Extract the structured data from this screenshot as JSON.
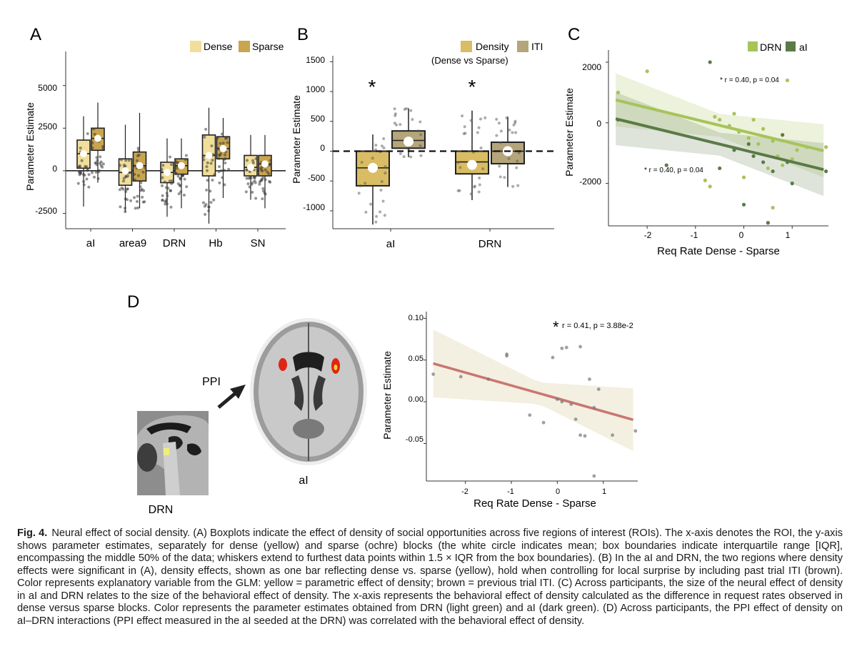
{
  "panels": {
    "A": {
      "label": "A",
      "ylabel": "Parameter Estimate",
      "legend": [
        "Dense",
        "Sparse"
      ],
      "colors": {
        "dense": "#f1de9a",
        "sparse": "#c9a54e"
      },
      "yticks": [
        "-2500",
        "0",
        "2500",
        "5000"
      ],
      "chart_data": {
        "type": "box",
        "categories": [
          "aI",
          "area9",
          "DRN",
          "Hb",
          "SN"
        ],
        "ylim": [
          -3400,
          7000
        ],
        "series": [
          {
            "name": "Dense",
            "q1": [
              150,
              -850,
              -700,
              -300,
              -300
            ],
            "median": [
              1000,
              -100,
              -100,
              900,
              200
            ],
            "q3": [
              1800,
              700,
              500,
              2100,
              900
            ],
            "mean": [
              1000,
              0,
              -100,
              900,
              200
            ],
            "whisker_low": [
              -2100,
              -2400,
              -2700,
              -3100,
              -1700
            ],
            "whisker_high": [
              3200,
              2700,
              1900,
              3700,
              2100
            ]
          },
          {
            "name": "Sparse",
            "q1": [
              1200,
              -600,
              -200,
              700,
              -300
            ],
            "median": [
              1900,
              300,
              300,
              1300,
              400
            ],
            "q3": [
              2500,
              1100,
              700,
              2000,
              900
            ],
            "mean": [
              1900,
              300,
              300,
              1300,
              400
            ],
            "whisker_low": [
              -700,
              -2200,
              -2200,
              -1600,
              -2200
            ],
            "whisker_high": [
              4000,
              3400,
              1900,
              3100,
              2100
            ]
          }
        ]
      }
    },
    "B": {
      "label": "B",
      "ylabel": "Parameter Estimate",
      "legend": [
        "Density",
        "ITI"
      ],
      "legend_sub": "(Dense vs Sparse)",
      "colors": {
        "density": "#d9bc63",
        "iti": "#b5a57a"
      },
      "yticks": [
        "-1000",
        "-500",
        "0",
        "500",
        "1000",
        "1500"
      ],
      "stars": [
        "*",
        "*"
      ],
      "chart_data": {
        "type": "box",
        "categories": [
          "aI",
          "DRN"
        ],
        "ylim": [
          -1300,
          1600
        ],
        "series": [
          {
            "name": "Density",
            "q1": [
              -580,
              -380
            ],
            "median": [
              -280,
              -180
            ],
            "q3": [
              0,
              0
            ],
            "mean": [
              -280,
              -230
            ],
            "whisker_low": [
              -1230,
              -820
            ],
            "whisker_high": [
              280,
              680
            ]
          },
          {
            "name": "ITI",
            "q1": [
              50,
              -210
            ],
            "median": [
              180,
              0
            ],
            "q3": [
              340,
              150
            ],
            "mean": [
              160,
              0
            ],
            "whisker_low": [
              -100,
              -600
            ],
            "whisker_high": [
              720,
              580
            ]
          }
        ]
      }
    },
    "C": {
      "label": "C",
      "ylabel": "Parameter Estimate",
      "xlabel": "Req Rate Dense - Sparse",
      "legend": [
        "DRN",
        "aI"
      ],
      "colors": {
        "drn": "#a7c35a",
        "ai": "#5a7a46"
      },
      "xticks": [
        "-2",
        "-1",
        "0",
        "1"
      ],
      "yticks": [
        "-2000",
        "0",
        "2000"
      ],
      "annotations": [
        "* r = 0.40, p = 0.04",
        "* r = 0.40, p = 0.04"
      ],
      "chart_data": {
        "type": "scatter",
        "xlim": [
          -2.8,
          1.75
        ],
        "ylim": [
          -3400,
          2400
        ],
        "series": [
          {
            "name": "DRN",
            "line": {
              "intercept": -280,
              "slope": -390
            },
            "x": [
              -2.6,
              -2.0,
              -0.7,
              -0.6,
              -0.5,
              -0.2,
              0.1,
              0.3,
              0.4,
              0.6,
              0.7,
              0.9,
              1.1,
              1.3,
              1.7,
              -0.3,
              0.5,
              0.2,
              -0.1,
              0.8,
              1.0,
              -0.8,
              0.0,
              0.6
            ],
            "y": [
              1000,
              1700,
              -2100,
              200,
              100,
              300,
              -500,
              -700,
              -200,
              -2800,
              -1100,
              1400,
              -900,
              -800,
              -800,
              -100,
              -1500,
              100,
              -300,
              -1400,
              -1200,
              -1900,
              -1800,
              -600
            ]
          },
          {
            "name": "aI",
            "line": {
              "intercept": -900,
              "slope": -390
            },
            "x": [
              -2.6,
              -1.6,
              -0.7,
              0.0,
              0.5,
              0.8,
              1.7,
              -0.2,
              0.2,
              0.4,
              0.6,
              1.0,
              -0.5,
              0.1,
              0.9
            ],
            "y": [
              100,
              -1400,
              2000,
              -2700,
              -3300,
              -400,
              -1600,
              -900,
              -1100,
              -1300,
              -1600,
              -2000,
              -1500,
              -700,
              -1300
            ]
          }
        ]
      }
    },
    "D": {
      "label": "D",
      "ppi_text": "PPI",
      "drn_label": "DRN",
      "ai_label": "aI",
      "ylabel": "Parameter Estimate",
      "xlabel": "Req Rate Dense - Sparse",
      "xticks": [
        "-2",
        "-1",
        "0",
        "1"
      ],
      "yticks": [
        "-0.05",
        "0.00",
        "0.05",
        "0.10"
      ],
      "annotation_star": "*",
      "annotation": "r = 0.41, p = 3.88e-2",
      "colors": {
        "line": "#c97670",
        "band": "#f3efe1"
      },
      "chart_data": {
        "type": "scatter",
        "xlim": [
          -2.85,
          1.75
        ],
        "ylim": [
          -0.095,
          0.108
        ],
        "line": {
          "intercept": 0.004,
          "slope": -0.0155
        },
        "x": [
          -2.7,
          -2.1,
          -1.5,
          -1.1,
          -1.1,
          -0.6,
          -0.3,
          -0.1,
          0.0,
          0.1,
          0.2,
          0.3,
          0.4,
          0.5,
          0.6,
          0.7,
          0.8,
          0.9,
          1.2,
          1.7,
          0.1,
          0.5,
          0.8
        ],
        "y": [
          0.033,
          0.03,
          0.027,
          0.057,
          0.055,
          -0.016,
          -0.025,
          0.053,
          0.003,
          0.064,
          0.065,
          -0.003,
          -0.021,
          -0.04,
          -0.041,
          0.027,
          -0.089,
          0.015,
          -0.04,
          -0.035,
          0.0,
          0.066,
          -0.007
        ]
      }
    }
  },
  "caption": {
    "label": "Fig. 4.",
    "text": "Neural effect of social density. (A) Boxplots indicate the effect of density of social opportunities across five regions of interest (ROIs). The x-axis denotes the ROI, the y-axis shows parameter estimates, separately for dense (yellow) and sparse (ochre) blocks (the white circle indicates mean; box boundaries indicate interquartile range [IQR], encompassing the middle 50% of the data; whiskers extend to furthest data points within 1.5 × IQR from the box boundaries). (B) In the aI and DRN, the two regions where density effects were significant in (A), density effects, shown as one bar reflecting dense vs. sparse (yellow), hold when controlling for local surprise by including past trial ITI (brown). Color represents explanatory variable from the GLM: yellow = parametric effect of density; brown = previous trial ITI. (C) Across participants, the size of the neural effect of density in aI and DRN relates to the size of the behavioral effect of density. The x-axis represents the behavioral effect of density calculated as the difference in request rates observed in dense versus sparse blocks. Color represents the parameter estimates obtained from DRN (light green) and aI (dark green). (D) Across participants, the PPI effect of density on aI–DRN interactions (PPI effect measured in the aI seeded at the DRN) was correlated with the behavioral effect of density."
  }
}
